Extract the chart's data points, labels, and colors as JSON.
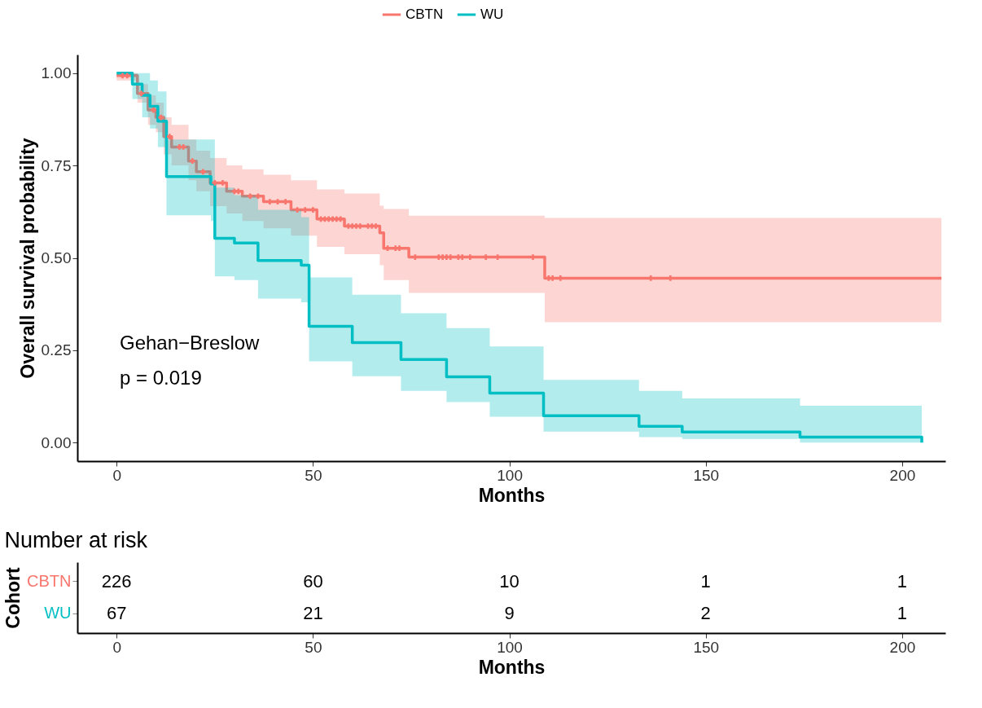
{
  "chart_data": [
    {
      "type": "step",
      "xlabel": "Months",
      "ylabel": "Overall survival probability",
      "legend": "top",
      "grid": false,
      "xlim": [
        -10,
        211
      ],
      "xticks": [
        0,
        50,
        100,
        150,
        200
      ],
      "ylim": [
        -0.05,
        1.05
      ],
      "yticks": [
        {
          "value": 0,
          "label": "0.00"
        },
        {
          "value": 0.25,
          "label": "0.25"
        },
        {
          "value": 0.5,
          "label": "0.50"
        },
        {
          "value": 0.75,
          "label": "0.75"
        },
        {
          "value": 1,
          "label": "1.00"
        }
      ],
      "annotations": [
        "Gehan−Breslow",
        "p = 0.019"
      ],
      "series": [
        {
          "name": "CBTN",
          "color": "#f8766d",
          "x": [
            0,
            5.3,
            8,
            10,
            12,
            14,
            18.3,
            20.3,
            23.8,
            28,
            32,
            37.4,
            44.4,
            51,
            58,
            67,
            68,
            74.4,
            109,
            210
          ],
          "values": [
            0.993,
            0.945,
            0.9,
            0.88,
            0.828,
            0.8,
            0.762,
            0.733,
            0.703,
            0.68,
            0.667,
            0.652,
            0.63,
            0.605,
            0.586,
            0.568,
            0.526,
            0.502,
            0.445,
            0.445
          ],
          "lower": [
            0.98,
            0.92,
            0.86,
            0.84,
            0.78,
            0.75,
            0.71,
            0.68,
            0.64,
            0.62,
            0.6,
            0.58,
            0.56,
            0.53,
            0.51,
            0.48,
            0.44,
            0.405,
            0.326,
            0.326
          ],
          "upper": [
            1.0,
            0.97,
            0.94,
            0.92,
            0.88,
            0.86,
            0.82,
            0.79,
            0.77,
            0.75,
            0.74,
            0.725,
            0.71,
            0.685,
            0.674,
            0.641,
            0.632,
            0.614,
            0.608,
            0.608
          ]
        },
        {
          "name": "WU",
          "color": "#00bfc4",
          "x": [
            0,
            4,
            6.5,
            8.5,
            10.5,
            12.7,
            24,
            25,
            30,
            36,
            47,
            49,
            60,
            72.4,
            84,
            95,
            108.7,
            133,
            144,
            174,
            205
          ],
          "values": [
            1.0,
            0.97,
            0.94,
            0.91,
            0.87,
            0.72,
            0.7,
            0.553,
            0.54,
            0.493,
            0.48,
            0.315,
            0.271,
            0.225,
            0.178,
            0.134,
            0.073,
            0.044,
            0.029,
            0.015,
            0.0
          ],
          "lower": [
            1.0,
            0.93,
            0.88,
            0.85,
            0.8,
            0.615,
            0.6,
            0.45,
            0.44,
            0.39,
            0.38,
            0.22,
            0.18,
            0.14,
            0.11,
            0.07,
            0.03,
            0.015,
            0.01,
            0.0,
            0.0
          ],
          "upper": [
            1.0,
            1.0,
            1.0,
            0.98,
            0.95,
            0.82,
            0.82,
            0.69,
            0.67,
            0.63,
            0.61,
            0.447,
            0.4,
            0.35,
            0.31,
            0.26,
            0.17,
            0.14,
            0.12,
            0.1,
            0.1
          ]
        },
        {
          "type": "scatter",
          "marker": "cross",
          "color": "#f8766d",
          "x": [
            1.5,
            2.7,
            6.3,
            9.4,
            11.3,
            13.5,
            16,
            17,
            19.3,
            22,
            25,
            27,
            30,
            31,
            34,
            36,
            39,
            41,
            43,
            46,
            48,
            50,
            52,
            53,
            54,
            55,
            56,
            57,
            59,
            60,
            61,
            62,
            64,
            65,
            66,
            69,
            71,
            72,
            76,
            82,
            83,
            84,
            85,
            87,
            88,
            90,
            94,
            97,
            106,
            110,
            111,
            113,
            136,
            141
          ],
          "values": [
            0.993,
            0.993,
            0.945,
            0.9,
            0.88,
            0.828,
            0.8,
            0.8,
            0.762,
            0.733,
            0.703,
            0.703,
            0.68,
            0.68,
            0.667,
            0.667,
            0.652,
            0.652,
            0.652,
            0.63,
            0.63,
            0.63,
            0.605,
            0.605,
            0.605,
            0.605,
            0.605,
            0.605,
            0.586,
            0.586,
            0.586,
            0.586,
            0.586,
            0.586,
            0.586,
            0.526,
            0.526,
            0.526,
            0.502,
            0.502,
            0.502,
            0.502,
            0.502,
            0.502,
            0.502,
            0.502,
            0.502,
            0.502,
            0.502,
            0.445,
            0.445,
            0.445,
            0.445,
            0.445
          ]
        }
      ]
    },
    {
      "type": "heatmap",
      "title": "Number at risk",
      "xlabel": "Months",
      "ylabel": "Cohort",
      "data_labels": true,
      "categories": [
        "0",
        "50",
        "100",
        "150",
        "200"
      ],
      "y_categories": [
        "CBTN",
        "WU"
      ],
      "cells": [
        [
          226,
          60,
          10,
          1,
          1
        ],
        [
          67,
          21,
          9,
          2,
          1
        ]
      ]
    }
  ]
}
